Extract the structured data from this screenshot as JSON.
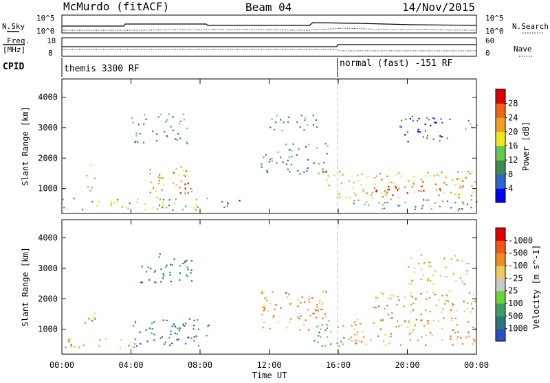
{
  "header": {
    "station": "McMurdo (fitACF)",
    "beam": "Beam 04",
    "date": "14/Nov/2015"
  },
  "top_panels": {
    "nsky_label": "N.Sky",
    "nsearch_label": "N.Search",
    "noise_left_ticks": [
      "10^5",
      "10^0"
    ],
    "noise_right_ticks": [
      "10^5",
      "10^0"
    ],
    "freq_label": "Freq.",
    "freq_unit": "[MHz]",
    "freq_ticks": [
      "18",
      "8"
    ],
    "nave_label": "Nave",
    "nave_ticks": [
      "60",
      "0"
    ],
    "cpid_label": "CPID",
    "cpid_segments": [
      {
        "text": "themis 3300 RF",
        "start_hour": 0
      },
      {
        "text": "normal (fast) -151 RF",
        "start_hour": 16
      }
    ]
  },
  "chart_data": [
    {
      "type": "heatmap",
      "name": "power",
      "ylabel": "Slant Range [km]",
      "xlabel": "Time UT",
      "x_ticks": [
        "00:00",
        "04:00",
        "08:00",
        "12:00",
        "16:00",
        "20:00",
        "00:00"
      ],
      "xlim_hours": [
        0,
        24
      ],
      "y_ticks": [
        1000,
        2000,
        3000,
        4000
      ],
      "ylim": [
        180,
        4600
      ],
      "colorbar": {
        "label": "Power [dB]",
        "tick_labels": [
          "4",
          "8",
          "12",
          "16",
          "20",
          "24",
          "28"
        ],
        "colors": [
          "#0000ff",
          "#2f64c8",
          "#3c8c50",
          "#64c850",
          "#f0e61e",
          "#f0a01e",
          "#f06414",
          "#dc0000"
        ]
      },
      "approx_echo_regions": [
        {
          "t0": 0.0,
          "t1": 8.5,
          "r0": 300,
          "r1": 700,
          "level": 3
        },
        {
          "t0": 1.4,
          "t1": 1.9,
          "r0": 900,
          "r1": 1800,
          "level": 4
        },
        {
          "t0": 4.0,
          "t1": 7.5,
          "r0": 2500,
          "r1": 3500,
          "level": 2
        },
        {
          "t0": 5.0,
          "t1": 7.5,
          "r0": 700,
          "r1": 1800,
          "level": 5
        },
        {
          "t0": 6.6,
          "t1": 7.4,
          "r0": 850,
          "r1": 1200,
          "level": 7
        },
        {
          "t0": 9.0,
          "t1": 11.0,
          "r0": 400,
          "r1": 700,
          "level": 1
        },
        {
          "t0": 11.5,
          "t1": 15.5,
          "r0": 1500,
          "r1": 2500,
          "level": 2
        },
        {
          "t0": 12.0,
          "t1": 15.0,
          "r0": 2900,
          "r1": 3500,
          "level": 2
        },
        {
          "t0": 15.0,
          "t1": 24.0,
          "r0": 700,
          "r1": 1600,
          "level": 5
        },
        {
          "t0": 18.0,
          "t1": 22.0,
          "r0": 800,
          "r1": 1100,
          "level": 7
        },
        {
          "t0": 16.0,
          "t1": 24.0,
          "r0": 300,
          "r1": 700,
          "level": 2
        },
        {
          "t0": 19.5,
          "t1": 22.5,
          "r0": 2500,
          "r1": 3400,
          "level": 1
        },
        {
          "t0": 23.3,
          "t1": 24.0,
          "r0": 2900,
          "r1": 3300,
          "level": 2
        }
      ]
    },
    {
      "type": "heatmap",
      "name": "velocity",
      "ylabel": "Slant Range [km]",
      "xlabel": "Time UT",
      "x_ticks": [
        "00:00",
        "04:00",
        "08:00",
        "12:00",
        "16:00",
        "20:00",
        "00:00"
      ],
      "xlim_hours": [
        0,
        24
      ],
      "y_ticks": [
        1000,
        2000,
        3000,
        4000
      ],
      "ylim": [
        180,
        4600
      ],
      "colorbar": {
        "label": "Velocity [m s^-1]",
        "tick_labels": [
          "1000",
          "500",
          "100",
          "25",
          "-25",
          "-100",
          "-500",
          "-1000"
        ],
        "colors": [
          "#2850c8",
          "#287878",
          "#3ca064",
          "#6ed23c",
          "#c8c8c8",
          "#f0c85a",
          "#f08c1e",
          "#f05a14",
          "#e60000"
        ]
      },
      "approx_echo_regions": [
        {
          "t0": 0.0,
          "t1": 4.5,
          "r0": 400,
          "r1": 750,
          "level": 6
        },
        {
          "t0": 1.3,
          "t1": 2.0,
          "r0": 900,
          "r1": 1700,
          "level": 6
        },
        {
          "t0": 4.0,
          "t1": 8.5,
          "r0": 450,
          "r1": 1400,
          "level": 1
        },
        {
          "t0": 4.5,
          "t1": 7.5,
          "r0": 2500,
          "r1": 3500,
          "level": 1
        },
        {
          "t0": 11.5,
          "t1": 15.5,
          "r0": 1000,
          "r1": 2300,
          "level": 6
        },
        {
          "t0": 14.5,
          "t1": 17.0,
          "r0": 450,
          "r1": 1200,
          "level": 2
        },
        {
          "t0": 16.5,
          "t1": 24.0,
          "r0": 500,
          "r1": 1400,
          "level": 6
        },
        {
          "t0": 18.0,
          "t1": 24.0,
          "r0": 1500,
          "r1": 2300,
          "level": 6
        },
        {
          "t0": 20.0,
          "t1": 23.5,
          "r0": 2500,
          "r1": 3500,
          "level": 5
        }
      ]
    }
  ]
}
